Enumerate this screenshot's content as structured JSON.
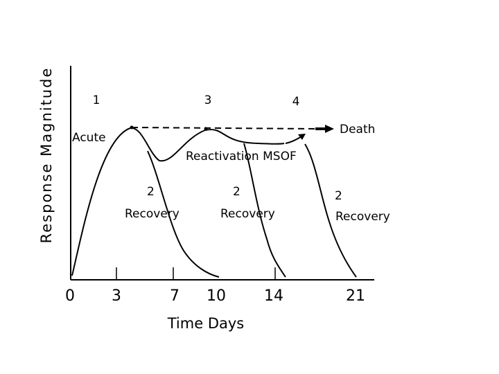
{
  "axis": {
    "y_label": "Response Magnitude",
    "x_label": "Time Days",
    "x_ticks": [
      "0",
      "3",
      "7",
      "10",
      "14",
      "21"
    ]
  },
  "phases": {
    "p1": "1",
    "p3": "3",
    "p4": "4"
  },
  "annotations": {
    "acute": "Acute",
    "death": "Death",
    "reactivation": "Reactivation MSOF",
    "rec1_num": "2",
    "rec1_label": "Recovery",
    "rec2_num": "2",
    "rec2_label": "Recovery",
    "rec3_num": "2",
    "rec3_label": "Recovery"
  }
}
